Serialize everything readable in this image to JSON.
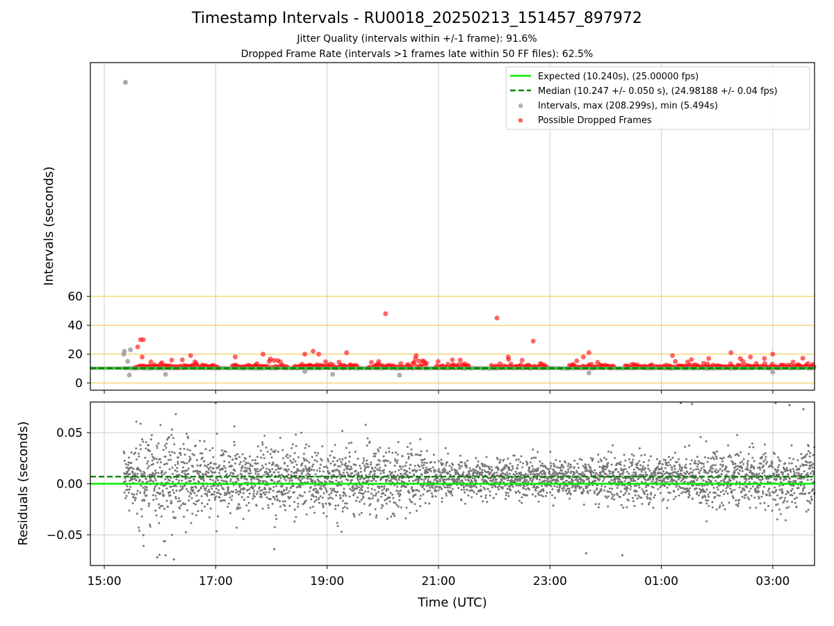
{
  "title": "Timestamp Intervals - RU0018_20250213_151457_897972",
  "subtitle_1": "Jitter Quality (intervals within +/-1 frame): 91.6%",
  "subtitle_2": "Dropped Frame Rate (intervals >1 frames late within 50 FF files): 62.5%",
  "colors": {
    "expected": "#00ee00",
    "median": "#007f00",
    "intervals": "#999999",
    "dropped": "#ff0000",
    "threshold_lines": "#f5d060",
    "residuals": "#777777",
    "grid": "#cccccc"
  },
  "chart_data": [
    {
      "type": "scatter",
      "panel": "top",
      "ylabel": "Intervals (seconds)",
      "xlim": [
        14.75,
        27.75
      ],
      "ylim": [
        -5,
        222
      ],
      "yticks": [
        0,
        20,
        40,
        60
      ],
      "ytick_labels": [
        "0",
        "20",
        "40",
        "60"
      ],
      "horizontal_lines": [
        0,
        10.24,
        20,
        40,
        60
      ],
      "expected_value": 10.24,
      "median_value": 10.247,
      "grid": true,
      "legend_placement": "top-right",
      "legend": [
        {
          "kind": "line-solid",
          "label": "Expected (10.240s), (25.00000 fps)"
        },
        {
          "kind": "line-dashed",
          "label": "Median (10.247 +/- 0.050 s), (24.98188 +/- 0.04 fps)"
        },
        {
          "kind": "marker-gray",
          "label": "Intervals, max (208.299s), min (5.494s)"
        },
        {
          "kind": "marker-red",
          "label": "Possible Dropped Frames"
        }
      ],
      "max_interval_point": {
        "x": 15.38,
        "y": 208.3
      },
      "gray_outliers": [
        {
          "x": 15.35,
          "y": 20
        },
        {
          "x": 15.36,
          "y": 22
        },
        {
          "x": 15.42,
          "y": 15
        },
        {
          "x": 15.47,
          "y": 23
        },
        {
          "x": 15.45,
          "y": 5.5
        },
        {
          "x": 16.1,
          "y": 6
        },
        {
          "x": 18.6,
          "y": 8
        },
        {
          "x": 19.1,
          "y": 6
        },
        {
          "x": 20.3,
          "y": 5.5
        },
        {
          "x": 23.7,
          "y": 7
        },
        {
          "x": 27.0,
          "y": 7.5
        }
      ],
      "dropped_highlights": [
        {
          "x": 15.6,
          "y": 25
        },
        {
          "x": 15.65,
          "y": 30
        },
        {
          "x": 15.7,
          "y": 30
        },
        {
          "x": 15.68,
          "y": 18
        },
        {
          "x": 16.4,
          "y": 16
        },
        {
          "x": 16.55,
          "y": 19
        },
        {
          "x": 17.35,
          "y": 18
        },
        {
          "x": 17.85,
          "y": 20
        },
        {
          "x": 18.6,
          "y": 20
        },
        {
          "x": 18.75,
          "y": 22
        },
        {
          "x": 18.85,
          "y": 20
        },
        {
          "x": 19.35,
          "y": 21
        },
        {
          "x": 20.05,
          "y": 48
        },
        {
          "x": 20.6,
          "y": 19
        },
        {
          "x": 21.25,
          "y": 16
        },
        {
          "x": 22.05,
          "y": 45
        },
        {
          "x": 22.25,
          "y": 18
        },
        {
          "x": 22.7,
          "y": 29
        },
        {
          "x": 23.6,
          "y": 18
        },
        {
          "x": 23.7,
          "y": 21
        },
        {
          "x": 25.2,
          "y": 19
        },
        {
          "x": 25.85,
          "y": 17
        },
        {
          "x": 26.25,
          "y": 21
        },
        {
          "x": 26.6,
          "y": 18
        },
        {
          "x": 26.85,
          "y": 17
        },
        {
          "x": 27.0,
          "y": 20
        }
      ],
      "dropped_baseline_segments": [
        [
          15.55,
          17.05
        ],
        [
          17.3,
          18.3
        ],
        [
          18.4,
          19.55
        ],
        [
          19.75,
          20.8
        ],
        [
          20.95,
          21.55
        ],
        [
          21.95,
          22.95
        ],
        [
          23.35,
          24.15
        ],
        [
          24.35,
          24.85
        ],
        [
          24.9,
          27.75
        ]
      ]
    },
    {
      "type": "scatter",
      "panel": "bottom",
      "xlabel": "Time (UTC)",
      "ylabel": "Residuals (seconds)",
      "xlim": [
        14.75,
        27.75
      ],
      "ylim": [
        -0.08,
        0.08
      ],
      "yticks": [
        -0.05,
        0.0,
        0.05
      ],
      "ytick_labels": [
        "−0.05",
        "0.00",
        "0.05"
      ],
      "xticks": [
        15,
        17,
        19,
        21,
        23,
        25,
        27
      ],
      "xtick_labels": [
        "15:00",
        "17:00",
        "19:00",
        "21:00",
        "23:00",
        "01:00",
        "03:00"
      ],
      "expected_residual": 0.0,
      "median_residual": 0.007,
      "residual_start": 15.35,
      "grid": true,
      "notable_points": [
        {
          "x": 15.95,
          "y": -0.072
        },
        {
          "x": 16.1,
          "y": -0.07
        },
        {
          "x": 16.25,
          "y": -0.074
        },
        {
          "x": 17.0,
          "y": 0.079
        },
        {
          "x": 18.05,
          "y": -0.064
        },
        {
          "x": 23.65,
          "y": -0.068
        },
        {
          "x": 24.3,
          "y": -0.07
        },
        {
          "x": 25.35,
          "y": 0.079
        },
        {
          "x": 25.55,
          "y": 0.078
        },
        {
          "x": 27.05,
          "y": 0.079
        },
        {
          "x": 27.3,
          "y": 0.077
        },
        {
          "x": 27.55,
          "y": 0.073
        }
      ]
    }
  ]
}
